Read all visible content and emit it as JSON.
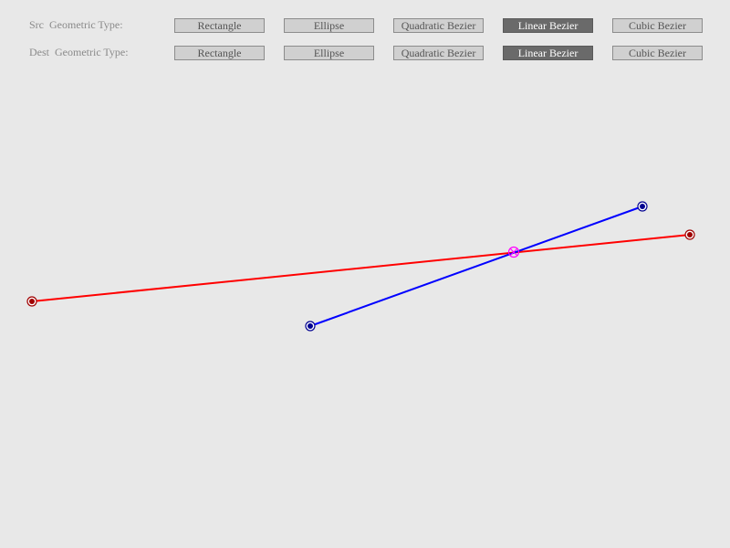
{
  "src": {
    "label": "Src  Geometric Type:",
    "buttons": [
      {
        "label": "Rectangle",
        "selected": false
      },
      {
        "label": "Ellipse",
        "selected": false
      },
      {
        "label": "Quadratic Bezier",
        "selected": false
      },
      {
        "label": "Linear Bezier",
        "selected": true
      },
      {
        "label": "Cubic Bezier",
        "selected": false
      }
    ]
  },
  "dest": {
    "label": "Dest  Geometric Type:",
    "buttons": [
      {
        "label": "Rectangle",
        "selected": false
      },
      {
        "label": "Ellipse",
        "selected": false
      },
      {
        "label": "Quadratic Bezier",
        "selected": false
      },
      {
        "label": "Linear Bezier",
        "selected": true
      },
      {
        "label": "Cubic Bezier",
        "selected": false
      }
    ]
  },
  "colors": {
    "background": "#e8e8e8",
    "src_line": "#ff0000",
    "src_handle": "#a00000",
    "dest_line": "#0000ff",
    "dest_handle": "#000090",
    "intersection": "#ff00ff",
    "button_bg": "#d0d0d0",
    "button_selected_bg": "#6a6a6a"
  },
  "icons": {
    "endpoint": "circle-dot-icon",
    "intersection": "circle-cross-icon"
  }
}
